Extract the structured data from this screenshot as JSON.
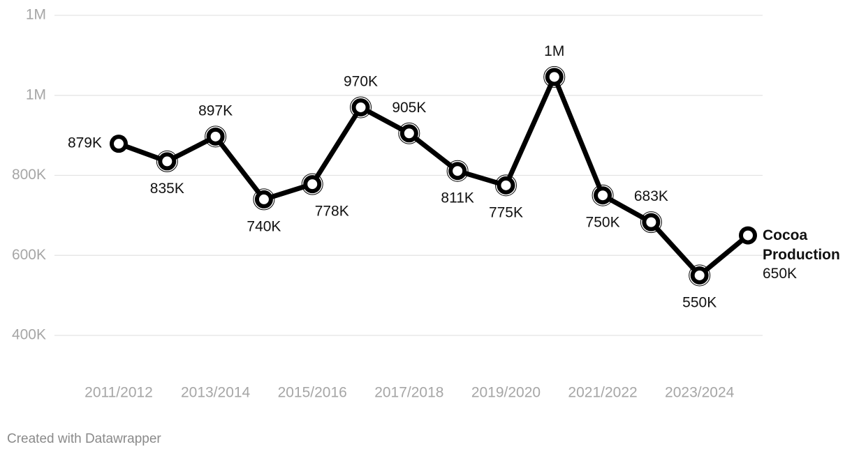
{
  "chart_data": {
    "type": "line",
    "categories": [
      "2011/2012",
      null,
      "2013/2014",
      null,
      "2015/2016",
      null,
      "2017/2018",
      null,
      "2019/2020",
      null,
      "2021/2022",
      null,
      "2023/2024",
      null
    ],
    "series": [
      {
        "name": "Cocoa Production",
        "color": "#000000",
        "values": [
          879000,
          835000,
          897000,
          740000,
          778000,
          970000,
          905000,
          811000,
          775000,
          1046000,
          750000,
          683000,
          550000,
          650000
        ],
        "value_labels": [
          "879K",
          "835K",
          "897K",
          "740K",
          "778K",
          "970K",
          "905K",
          "811K",
          "775K",
          "1M",
          "750K",
          "683K",
          "550K",
          "650K"
        ]
      }
    ],
    "ylim": [
      400000,
      1200000
    ],
    "yticks": [
      {
        "value": 400000,
        "label": "400K"
      },
      {
        "value": 600000,
        "label": "600K"
      },
      {
        "value": 800000,
        "label": "800K"
      },
      {
        "value": 1000000,
        "label": "1M"
      },
      {
        "value": 1200000,
        "label": "1M"
      }
    ],
    "grid": true,
    "footer": "Created with Datawrapper"
  }
}
